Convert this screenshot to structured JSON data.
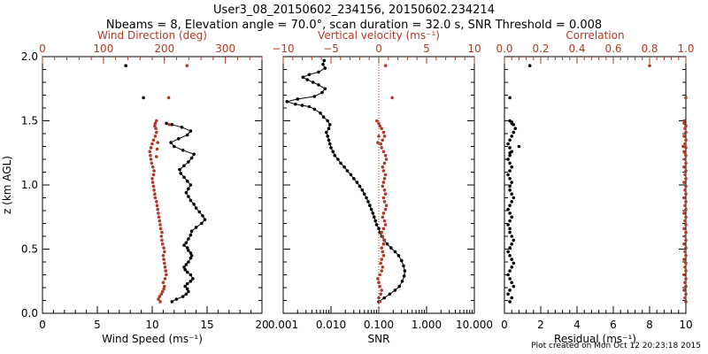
{
  "title": {
    "line1": "User3_08_20150602_234156, 20150602.234214",
    "line2": "Nbeams = 8, Elevation angle = 70.0°, scan duration = 32.0 s, SNR Threshold = 0.008"
  },
  "footer": "Plot created on Mon Oct 12 20:23:18 2015",
  "colors": {
    "black": "#000000",
    "red": "#b03a26"
  },
  "chart_data": [
    {
      "type": "line",
      "panel": "wind",
      "ylabel": "z (km AGL)",
      "ylim": [
        0,
        2.0
      ],
      "yticks": [
        "0.0",
        "0.5",
        "1.0",
        "1.5",
        "2.0"
      ],
      "xlabel_bottom": "Wind Speed (ms⁻¹)",
      "xlim_bottom": [
        0,
        20
      ],
      "xticks_bottom": [
        "0",
        "5",
        "10",
        "15",
        "20"
      ],
      "xlabel_top": "Wind Direction (deg)",
      "xlim_top": [
        0,
        360
      ],
      "xticks_top": [
        "0",
        "100",
        "200",
        "300"
      ],
      "series": [
        {
          "axis": "bottom",
          "color": "black",
          "connected": true,
          "x": [
            11.8,
            12.2,
            12.8,
            13.1,
            13.3,
            13.2,
            13.0,
            13.2,
            13.5,
            13.7,
            13.5,
            13.2,
            13.0,
            12.9,
            13.1,
            13.3,
            13.5,
            13.6,
            13.5,
            13.3,
            13.2,
            12.9,
            13.1,
            13.3,
            13.5,
            13.6,
            14.0,
            14.5,
            14.8,
            14.6,
            14.3,
            14.0,
            13.8,
            13.5,
            13.3,
            13.1,
            13.3,
            13.5,
            13.2,
            12.9,
            12.6,
            12.5,
            12.9,
            13.3,
            13.6,
            13.8,
            12.8,
            12.0,
            11.7,
            12.4,
            13.2,
            13.5,
            12.7,
            11.8,
            11.3
          ],
          "y": [
            0.09,
            0.11,
            0.13,
            0.15,
            0.17,
            0.19,
            0.21,
            0.23,
            0.25,
            0.27,
            0.3,
            0.32,
            0.34,
            0.36,
            0.38,
            0.4,
            0.43,
            0.45,
            0.47,
            0.49,
            0.51,
            0.53,
            0.55,
            0.58,
            0.61,
            0.64,
            0.67,
            0.7,
            0.73,
            0.76,
            0.79,
            0.82,
            0.85,
            0.88,
            0.91,
            0.94,
            0.97,
            1.0,
            1.03,
            1.06,
            1.09,
            1.12,
            1.15,
            1.18,
            1.21,
            1.24,
            1.27,
            1.3,
            1.33,
            1.36,
            1.39,
            1.42,
            1.45,
            1.47,
            1.48
          ]
        },
        {
          "axis": "bottom",
          "color": "black",
          "connected": false,
          "x": [
            7.6,
            9.2
          ],
          "y": [
            1.93,
            1.68
          ]
        },
        {
          "axis": "top",
          "color": "red",
          "connected": false,
          "x": [
            193,
            190,
            192,
            195,
            197,
            199,
            200,
            198,
            201,
            203,
            202,
            201,
            200,
            199,
            198,
            200,
            199,
            197,
            196,
            195,
            196,
            194,
            193,
            192,
            191,
            190,
            189,
            188,
            187,
            185,
            184,
            183,
            182,
            181,
            180,
            182,
            183,
            181,
            179,
            178,
            177,
            176,
            178,
            180,
            182,
            185,
            187,
            186,
            184,
            185,
            187,
            189,
            188,
            187
          ],
          "y": [
            0.09,
            0.11,
            0.13,
            0.15,
            0.17,
            0.19,
            0.21,
            0.24,
            0.27,
            0.3,
            0.33,
            0.36,
            0.39,
            0.42,
            0.45,
            0.48,
            0.51,
            0.54,
            0.57,
            0.6,
            0.63,
            0.66,
            0.69,
            0.72,
            0.75,
            0.78,
            0.81,
            0.84,
            0.87,
            0.9,
            0.93,
            0.96,
            0.99,
            1.02,
            1.05,
            1.08,
            1.11,
            1.14,
            1.17,
            1.2,
            1.23,
            1.26,
            1.29,
            1.32,
            1.35,
            1.38,
            1.41,
            1.44,
            1.46,
            1.48,
            1.5,
            1.33,
            1.28,
            1.22
          ]
        },
        {
          "axis": "top",
          "color": "red",
          "connected": false,
          "x": [
            237,
            207,
            208
          ],
          "y": [
            1.93,
            1.68,
            1.47
          ]
        }
      ]
    },
    {
      "type": "line",
      "panel": "vertical",
      "ylim": [
        0,
        2.0
      ],
      "xlabel_bottom": "SNR",
      "xscale_bottom": "log",
      "xlim_bottom": [
        0.001,
        10
      ],
      "xticks_bottom": [
        "0.001",
        "0.010",
        "0.100",
        "1.000",
        "10.000"
      ],
      "xlabel_top": "Vertical velocity (ms⁻¹)",
      "xlim_top": [
        -10,
        10
      ],
      "xticks_top": [
        "−10",
        "−5",
        "0",
        "5",
        "10"
      ],
      "reference_line": {
        "axis": "top",
        "x": 0,
        "color": "red",
        "style": "dotted"
      },
      "series": [
        {
          "axis": "bottom",
          "color": "black",
          "connected": true,
          "x": [
            0.1,
            0.13,
            0.17,
            0.22,
            0.27,
            0.31,
            0.34,
            0.35,
            0.33,
            0.3,
            0.26,
            0.22,
            0.18,
            0.15,
            0.13,
            0.115,
            0.105,
            0.1,
            0.09,
            0.085,
            0.08,
            0.075,
            0.07,
            0.065,
            0.06,
            0.055,
            0.05,
            0.045,
            0.04,
            0.035,
            0.03,
            0.026,
            0.022,
            0.019,
            0.016,
            0.014,
            0.012,
            0.011,
            0.01,
            0.0095,
            0.009,
            0.0085,
            0.008,
            0.009,
            0.0095,
            0.0085,
            0.007,
            0.006,
            0.0045,
            0.0035,
            0.0025,
            0.0018,
            0.0012,
            0.002,
            0.0045,
            0.0065,
            0.0075,
            0.0055,
            0.0042,
            0.0032,
            0.0026,
            0.0035,
            0.0055,
            0.0075,
            0.0068,
            0.0072
          ],
          "y": [
            0.09,
            0.12,
            0.15,
            0.18,
            0.21,
            0.25,
            0.29,
            0.33,
            0.37,
            0.41,
            0.45,
            0.48,
            0.51,
            0.54,
            0.57,
            0.6,
            0.63,
            0.66,
            0.69,
            0.72,
            0.75,
            0.78,
            0.81,
            0.84,
            0.87,
            0.9,
            0.93,
            0.96,
            0.99,
            1.02,
            1.05,
            1.08,
            1.11,
            1.14,
            1.17,
            1.2,
            1.23,
            1.26,
            1.29,
            1.32,
            1.35,
            1.38,
            1.41,
            1.44,
            1.47,
            1.5,
            1.53,
            1.56,
            1.59,
            1.61,
            1.62,
            1.63,
            1.65,
            1.67,
            1.69,
            1.72,
            1.75,
            1.78,
            1.8,
            1.82,
            1.84,
            1.86,
            1.88,
            1.91,
            1.94,
            1.97
          ]
        },
        {
          "axis": "top",
          "color": "red",
          "connected": false,
          "x": [
            0.1,
            0.0,
            0.2,
            0.3,
            0.1,
            0.0,
            -0.1,
            0.1,
            0.3,
            0.4,
            0.2,
            0.3,
            0.5,
            0.4,
            0.3,
            0.5,
            0.6,
            0.4,
            0.3,
            0.5,
            0.7,
            0.6,
            0.4,
            0.5,
            0.7,
            0.8,
            0.6,
            0.5,
            0.7,
            0.6,
            0.4,
            0.5,
            0.6,
            0.7,
            0.5,
            0.4,
            0.6,
            0.8,
            0.7,
            0.5,
            0.3,
            0.2,
            0.4,
            0.6,
            0.5,
            0.3,
            0.1,
            0.0,
            -0.1,
            0.0
          ],
          "y": [
            0.09,
            0.12,
            0.15,
            0.18,
            0.21,
            0.24,
            0.27,
            0.3,
            0.33,
            0.36,
            0.39,
            0.42,
            0.45,
            0.48,
            0.51,
            0.54,
            0.57,
            0.6,
            0.63,
            0.66,
            0.69,
            0.72,
            0.75,
            0.78,
            0.81,
            0.84,
            0.87,
            0.9,
            0.93,
            0.96,
            0.99,
            1.02,
            1.05,
            1.08,
            1.11,
            1.14,
            1.17,
            1.2,
            1.23,
            1.26,
            1.29,
            1.32,
            1.35,
            1.38,
            1.41,
            1.44,
            1.46,
            1.48,
            1.33,
            1.38
          ]
        },
        {
          "axis": "top",
          "color": "red",
          "connected": false,
          "x": [
            0.7,
            1.4,
            -0.2
          ],
          "y": [
            1.93,
            1.68,
            1.5
          ]
        }
      ]
    },
    {
      "type": "scatter",
      "panel": "correlation",
      "ylim": [
        0,
        2.0
      ],
      "xlabel_bottom": "Residual (ms⁻¹)",
      "xlim_bottom": [
        0,
        10
      ],
      "xticks_bottom": [
        "0",
        "2",
        "4",
        "6",
        "8",
        "10"
      ],
      "xlabel_top": "Correlation",
      "xlim_top": [
        0,
        1
      ],
      "xticks_top": [
        "0.0",
        "0.2",
        "0.4",
        "0.6",
        "0.8",
        "1.0"
      ],
      "series": [
        {
          "axis": "bottom",
          "color": "black",
          "connected": false,
          "x": [
            0.3,
            0.4,
            0.2,
            0.3,
            0.5,
            0.4,
            0.3,
            0.2,
            0.3,
            0.4,
            0.5,
            0.4,
            0.3,
            0.2,
            0.3,
            0.4,
            0.5,
            0.4,
            0.3,
            0.3,
            0.2,
            0.3,
            0.4,
            0.3,
            0.2,
            0.3,
            0.4,
            0.5,
            0.4,
            0.3,
            0.3,
            0.4,
            0.3,
            0.2,
            0.3,
            0.4,
            0.3,
            0.2,
            0.3,
            0.4,
            0.3,
            0.2,
            0.3,
            0.4,
            0.5,
            0.6,
            0.8,
            0.5,
            0.3,
            0.4,
            0.3,
            0.4,
            1.4,
            0.3
          ],
          "y": [
            0.09,
            0.12,
            0.15,
            0.18,
            0.21,
            0.24,
            0.27,
            0.3,
            0.33,
            0.36,
            0.39,
            0.42,
            0.45,
            0.48,
            0.51,
            0.54,
            0.57,
            0.6,
            0.63,
            0.66,
            0.69,
            0.72,
            0.75,
            0.78,
            0.81,
            0.84,
            0.87,
            0.9,
            0.93,
            0.96,
            0.99,
            1.02,
            1.05,
            1.08,
            1.11,
            1.14,
            1.17,
            1.2,
            1.23,
            1.26,
            1.29,
            1.32,
            1.35,
            1.38,
            1.41,
            1.44,
            1.3,
            1.47,
            1.25,
            1.48,
            1.5,
            1.49,
            1.93,
            1.68
          ]
        },
        {
          "axis": "top",
          "color": "red",
          "connected": false,
          "x": [
            1.0,
            0.995,
            1.0,
            0.99,
            1.0,
            0.995,
            1.0,
            0.99,
            1.0,
            0.995,
            1.0,
            0.99,
            1.0,
            0.995,
            1.0,
            0.99,
            1.0,
            0.995,
            1.0,
            0.99,
            1.0,
            0.995,
            1.0,
            0.99,
            1.0,
            0.995,
            1.0,
            0.99,
            1.0,
            0.995,
            1.0,
            0.99,
            1.0,
            0.995,
            1.0,
            0.99,
            1.0,
            0.995,
            1.0,
            0.99,
            1.0,
            0.995,
            1.0,
            0.99,
            1.0,
            0.995,
            1.0,
            0.99,
            0.985,
            0.99,
            1.0,
            0.8,
            0.995
          ],
          "y": [
            0.09,
            0.12,
            0.15,
            0.18,
            0.21,
            0.24,
            0.27,
            0.3,
            0.33,
            0.36,
            0.39,
            0.42,
            0.45,
            0.48,
            0.51,
            0.54,
            0.57,
            0.6,
            0.63,
            0.66,
            0.69,
            0.72,
            0.75,
            0.78,
            0.81,
            0.84,
            0.87,
            0.9,
            0.93,
            0.96,
            0.99,
            1.02,
            1.05,
            1.08,
            1.11,
            1.14,
            1.17,
            1.2,
            1.23,
            1.26,
            1.29,
            1.32,
            1.35,
            1.38,
            1.41,
            1.44,
            1.46,
            1.48,
            1.3,
            1.5,
            1.68,
            1.93,
            1.25
          ]
        }
      ]
    }
  ]
}
